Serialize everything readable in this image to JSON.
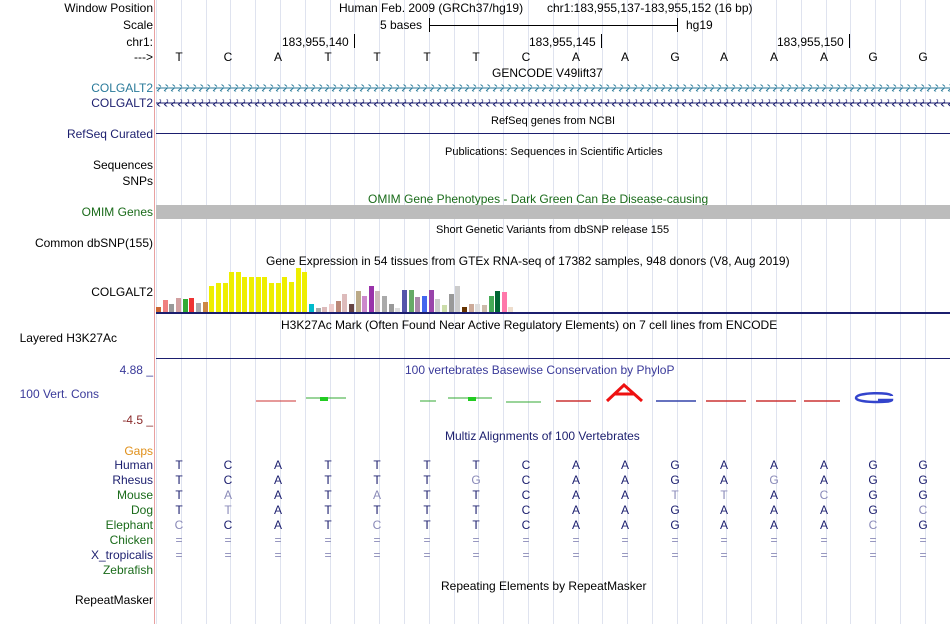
{
  "header": {
    "window_position_label": "Window Position",
    "scale_label": "Scale",
    "chrom_label": "chr1:",
    "strand_label": "--->",
    "assembly": "Human Feb. 2009 (GRCh37/hg19)",
    "range": "chr1:183,955,137-183,955,152 (16 bp)",
    "scale_text": "5 bases",
    "scale_db": "hg19",
    "coords": [
      "183,955,140",
      "183,955,145",
      "183,955,150"
    ]
  },
  "sequence": [
    "T",
    "C",
    "A",
    "T",
    "T",
    "T",
    "T",
    "C",
    "A",
    "A",
    "G",
    "A",
    "A",
    "A",
    "G",
    "G"
  ],
  "tracks": {
    "gencode": {
      "title": "GENCODE V49lift37",
      "rows": [
        "COLGALT2",
        "COLGALT2"
      ],
      "colors": [
        "#2a7a9a",
        "#1b1e6e"
      ]
    },
    "refseq": {
      "title": "RefSeq genes from NCBI",
      "label": "RefSeq Curated"
    },
    "publications": {
      "title": "Publications: Sequences in Scientific Articles",
      "labels": [
        "Sequences",
        "SNPs"
      ]
    },
    "omim": {
      "title": "OMIM Gene Phenotypes - Dark Green Can Be Disease-causing",
      "label": "OMIM Genes",
      "color": "#1a6b1a"
    },
    "dbsnp": {
      "title": "Short Genetic Variants from dbSNP release 155",
      "label": "Common dbSNP(155)"
    },
    "gtex": {
      "title": "Gene Expression in 54 tissues from GTEx RNA-seq of 17382 samples, 948 donors (V8, Aug 2019)",
      "label": "COLGALT2",
      "levels": [
        0.12,
        0.28,
        0.18,
        0.32,
        0.3,
        0.32,
        0.2,
        0.22,
        0.6,
        0.66,
        0.66,
        0.9,
        0.9,
        0.8,
        0.8,
        0.8,
        0.8,
        0.66,
        0.66,
        0.8,
        0.68,
        1.0,
        0.9,
        0.18,
        0.1,
        0.12,
        0.18,
        0.26,
        0.42,
        0.18,
        0.48,
        0.36,
        0.6,
        0.48,
        0.36,
        0.18,
        0.1,
        0.5,
        0.5,
        0.34,
        0.36,
        0.5,
        0.3,
        0.16,
        0.4,
        0.58,
        0.12,
        0.18,
        0.18,
        0.16,
        0.36,
        0.48,
        0.46,
        0.12
      ],
      "colors": [
        "#cc6633",
        "#f08080",
        "#999999",
        "#d2a0a0",
        "#33aa33",
        "#ee3333",
        "#aaaaaa",
        "#cc8844",
        "#eeee00",
        "#eeee00",
        "#eeee00",
        "#eeee00",
        "#eeee00",
        "#eeee00",
        "#eeee00",
        "#eeee00",
        "#eeee00",
        "#eeee00",
        "#eeee00",
        "#eeee00",
        "#eeee00",
        "#eeee00",
        "#eeee00",
        "#00bbcc",
        "#aaaaaa",
        "#ddbbbb",
        "#eecccc",
        "#bb8877",
        "#ddbbbb",
        "#664444",
        "#bbaa88",
        "#cc88cc",
        "#9933aa",
        "#ccbbbb",
        "#aaaaaa",
        "#999999",
        "#dddddd",
        "#5555aa",
        "#66aa66",
        "#aa88aa",
        "#4466ee",
        "#9944aa",
        "#cccccc",
        "#ccddaa",
        "#999999",
        "#cccccc",
        "#663300",
        "#ccaa99",
        "#dddddd",
        "#ccbbaa",
        "#44aa55",
        "#006633",
        "#ff77aa",
        "#eeddcc"
      ]
    },
    "h3k27ac": {
      "title": "H3K27Ac Mark (Often Found Near Active Regulatory Elements) on 7 cell lines from ENCODE",
      "label": "Layered H3K27Ac"
    },
    "phylop": {
      "title": "100 vertebrates Basewise Conservation by PhyloP",
      "label": "100 Vert. Cons",
      "max": "4.88 _",
      "min": "-4.5 _",
      "title_color": "#3a3a9a",
      "max_color": "#3a3a9a",
      "min_color": "#8a2a2a"
    },
    "multiz": {
      "title": "Multiz Alignments of 100 Vertebrates",
      "gaps_label": "Gaps",
      "species": [
        {
          "name": "Human",
          "color": "#1b1e6e",
          "bases": [
            "T",
            "C",
            "A",
            "T",
            "T",
            "T",
            "T",
            "C",
            "A",
            "A",
            "G",
            "A",
            "A",
            "A",
            "G",
            "G"
          ],
          "faded": []
        },
        {
          "name": "Rhesus",
          "color": "#1b1e6e",
          "bases": [
            "T",
            "C",
            "A",
            "T",
            "T",
            "T",
            "G",
            "C",
            "A",
            "A",
            "G",
            "A",
            "G",
            "A",
            "G",
            "G"
          ],
          "faded": [
            6,
            12
          ]
        },
        {
          "name": "Mouse",
          "color": "#1a6b1a",
          "bases": [
            "T",
            "A",
            "A",
            "T",
            "A",
            "T",
            "T",
            "C",
            "A",
            "A",
            "T",
            "T",
            "A",
            "C",
            "G",
            "G"
          ],
          "faded": [
            1,
            4,
            10,
            11,
            13
          ]
        },
        {
          "name": "Dog",
          "color": "#1a6b1a",
          "bases": [
            "T",
            "T",
            "A",
            "T",
            "T",
            "T",
            "T",
            "C",
            "A",
            "A",
            "G",
            "A",
            "A",
            "A",
            "G",
            "C"
          ],
          "faded": [
            1,
            15
          ]
        },
        {
          "name": "Elephant",
          "color": "#1a6b1a",
          "bases": [
            "C",
            "C",
            "A",
            "T",
            "C",
            "T",
            "T",
            "C",
            "A",
            "A",
            "G",
            "A",
            "A",
            "A",
            "C",
            "G"
          ],
          "faded": [
            0,
            4,
            14
          ]
        },
        {
          "name": "Chicken",
          "color": "#1a6b1a",
          "bases": [
            "=",
            "=",
            "=",
            "=",
            "=",
            "=",
            "=",
            "=",
            "=",
            "=",
            "=",
            "=",
            "=",
            "=",
            "=",
            "="
          ],
          "faded": []
        },
        {
          "name": "X_tropicalis",
          "color": "#1b1e6e",
          "bases": [
            "=",
            "=",
            "=",
            "=",
            "=",
            "=",
            "=",
            "=",
            "=",
            "=",
            "=",
            "=",
            "=",
            "=",
            "=",
            "="
          ],
          "faded": []
        },
        {
          "name": "Zebrafish",
          "color": "#1a6b1a",
          "bases": [],
          "faded": []
        }
      ]
    },
    "repeatmasker": {
      "title": "Repeating Elements by RepeatMasker",
      "label": "RepeatMasker"
    }
  }
}
